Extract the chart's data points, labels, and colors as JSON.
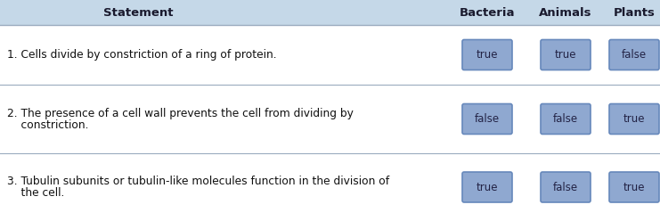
{
  "header_bg": "#c5d8e8",
  "row_bg": "#f0f4f8",
  "white_bg": "#ffffff",
  "divider_color": "#9aabbf",
  "header_text_color": "#1a1a2e",
  "statement_text_color": "#111111",
  "button_bg": "#8fa8d0",
  "button_border": "#6688bb",
  "button_text_color": "#222244",
  "col_header": [
    "Statement",
    "Bacteria",
    "Animals",
    "Plants"
  ],
  "rows": [
    {
      "statement_lines": [
        "1. Cells divide by constriction of a ring of protein."
      ],
      "answers": [
        "true",
        "true",
        "false"
      ]
    },
    {
      "statement_lines": [
        "2. The presence of a cell wall prevents the cell from dividing by",
        "    constriction."
      ],
      "answers": [
        "false",
        "false",
        "true"
      ]
    },
    {
      "statement_lines": [
        "3. Tubulin subunits or tubulin-like molecules function in the division of",
        "    the cell."
      ],
      "answers": [
        "true",
        "false",
        "true"
      ]
    }
  ],
  "fig_width": 7.41,
  "fig_height": 2.48,
  "dpi": 100
}
